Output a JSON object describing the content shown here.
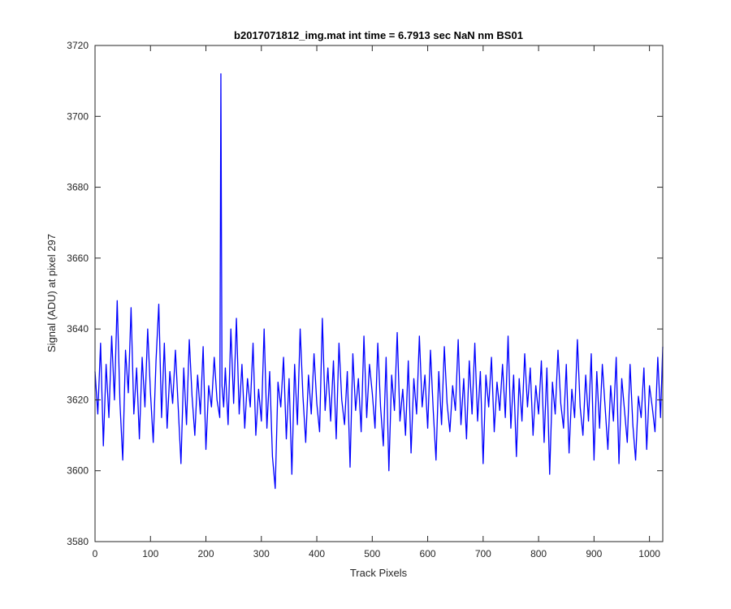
{
  "chart_data": {
    "type": "line",
    "title": "b2017071812_img.mat int time = 6.7913 sec  NaN nm BS01",
    "xlabel": "Track Pixels",
    "ylabel": "Signal (ADU) at pixel 297",
    "xlim": [
      0,
      1024
    ],
    "ylim": [
      3580,
      3720
    ],
    "xticks": [
      0,
      100,
      200,
      300,
      400,
      500,
      600,
      700,
      800,
      900,
      1000
    ],
    "yticks": [
      3580,
      3600,
      3620,
      3640,
      3660,
      3680,
      3700,
      3720
    ],
    "grid": false,
    "series": [
      {
        "color": "#0000ff",
        "x": [
          0,
          5,
          10,
          15,
          20,
          25,
          30,
          35,
          40,
          45,
          50,
          55,
          60,
          65,
          70,
          75,
          80,
          85,
          90,
          95,
          100,
          105,
          110,
          115,
          120,
          125,
          130,
          135,
          140,
          145,
          150,
          155,
          160,
          165,
          170,
          175,
          180,
          185,
          190,
          195,
          200,
          205,
          210,
          215,
          220,
          225,
          227,
          229,
          232,
          235,
          240,
          245,
          250,
          255,
          260,
          265,
          270,
          275,
          280,
          285,
          290,
          295,
          300,
          305,
          310,
          315,
          320,
          325,
          330,
          335,
          340,
          345,
          350,
          355,
          360,
          365,
          370,
          375,
          380,
          385,
          390,
          395,
          400,
          405,
          410,
          415,
          420,
          425,
          430,
          435,
          440,
          445,
          450,
          455,
          460,
          465,
          470,
          475,
          480,
          485,
          490,
          495,
          500,
          505,
          510,
          515,
          520,
          525,
          530,
          535,
          540,
          545,
          550,
          555,
          560,
          565,
          570,
          575,
          580,
          585,
          590,
          595,
          600,
          605,
          610,
          615,
          620,
          625,
          630,
          635,
          640,
          645,
          650,
          655,
          660,
          665,
          670,
          675,
          680,
          685,
          690,
          695,
          700,
          705,
          710,
          715,
          720,
          725,
          730,
          735,
          740,
          745,
          750,
          755,
          760,
          765,
          770,
          775,
          780,
          785,
          790,
          795,
          800,
          805,
          810,
          815,
          820,
          825,
          830,
          835,
          840,
          845,
          850,
          855,
          860,
          865,
          870,
          875,
          880,
          885,
          890,
          895,
          900,
          905,
          910,
          915,
          920,
          925,
          930,
          935,
          940,
          945,
          950,
          955,
          960,
          965,
          970,
          975,
          980,
          985,
          990,
          995,
          1000,
          1005,
          1010,
          1015,
          1020,
          1024
        ],
        "y": [
          3628,
          3616,
          3636,
          3607,
          3630,
          3615,
          3638,
          3620,
          3648,
          3619,
          3603,
          3634,
          3622,
          3646,
          3616,
          3629,
          3609,
          3632,
          3618,
          3640,
          3622,
          3608,
          3631,
          3647,
          3615,
          3636,
          3612,
          3628,
          3619,
          3634,
          3618,
          3602,
          3629,
          3613,
          3637,
          3621,
          3610,
          3627,
          3616,
          3635,
          3606,
          3624,
          3618,
          3632,
          3620,
          3615,
          3712,
          3624,
          3618,
          3629,
          3613,
          3640,
          3619,
          3643,
          3616,
          3630,
          3612,
          3626,
          3618,
          3636,
          3610,
          3623,
          3614,
          3640,
          3612,
          3628,
          3604,
          3595,
          3625,
          3618,
          3632,
          3609,
          3626,
          3599,
          3630,
          3613,
          3640,
          3621,
          3608,
          3627,
          3616,
          3633,
          3619,
          3611,
          3643,
          3617,
          3629,
          3614,
          3631,
          3609,
          3636,
          3620,
          3613,
          3628,
          3601,
          3633,
          3617,
          3626,
          3611,
          3638,
          3615,
          3630,
          3622,
          3612,
          3636,
          3618,
          3607,
          3632,
          3600,
          3627,
          3617,
          3639,
          3614,
          3623,
          3610,
          3631,
          3605,
          3626,
          3616,
          3638,
          3618,
          3627,
          3612,
          3634,
          3617,
          3603,
          3628,
          3613,
          3635,
          3619,
          3611,
          3624,
          3617,
          3637,
          3613,
          3626,
          3609,
          3631,
          3616,
          3636,
          3614,
          3628,
          3602,
          3627,
          3618,
          3632,
          3611,
          3625,
          3617,
          3630,
          3615,
          3638,
          3612,
          3627,
          3604,
          3626,
          3614,
          3633,
          3618,
          3629,
          3610,
          3624,
          3616,
          3631,
          3608,
          3629,
          3599,
          3625,
          3616,
          3634,
          3619,
          3612,
          3630,
          3605,
          3623,
          3615,
          3637,
          3618,
          3610,
          3627,
          3614,
          3633,
          3603,
          3628,
          3612,
          3630,
          3618,
          3606,
          3624,
          3614,
          3632,
          3602,
          3626,
          3617,
          3608,
          3630,
          3613,
          3603,
          3621,
          3615,
          3629,
          3606,
          3624,
          3618,
          3611,
          3632,
          3615,
          3635
        ]
      }
    ]
  }
}
